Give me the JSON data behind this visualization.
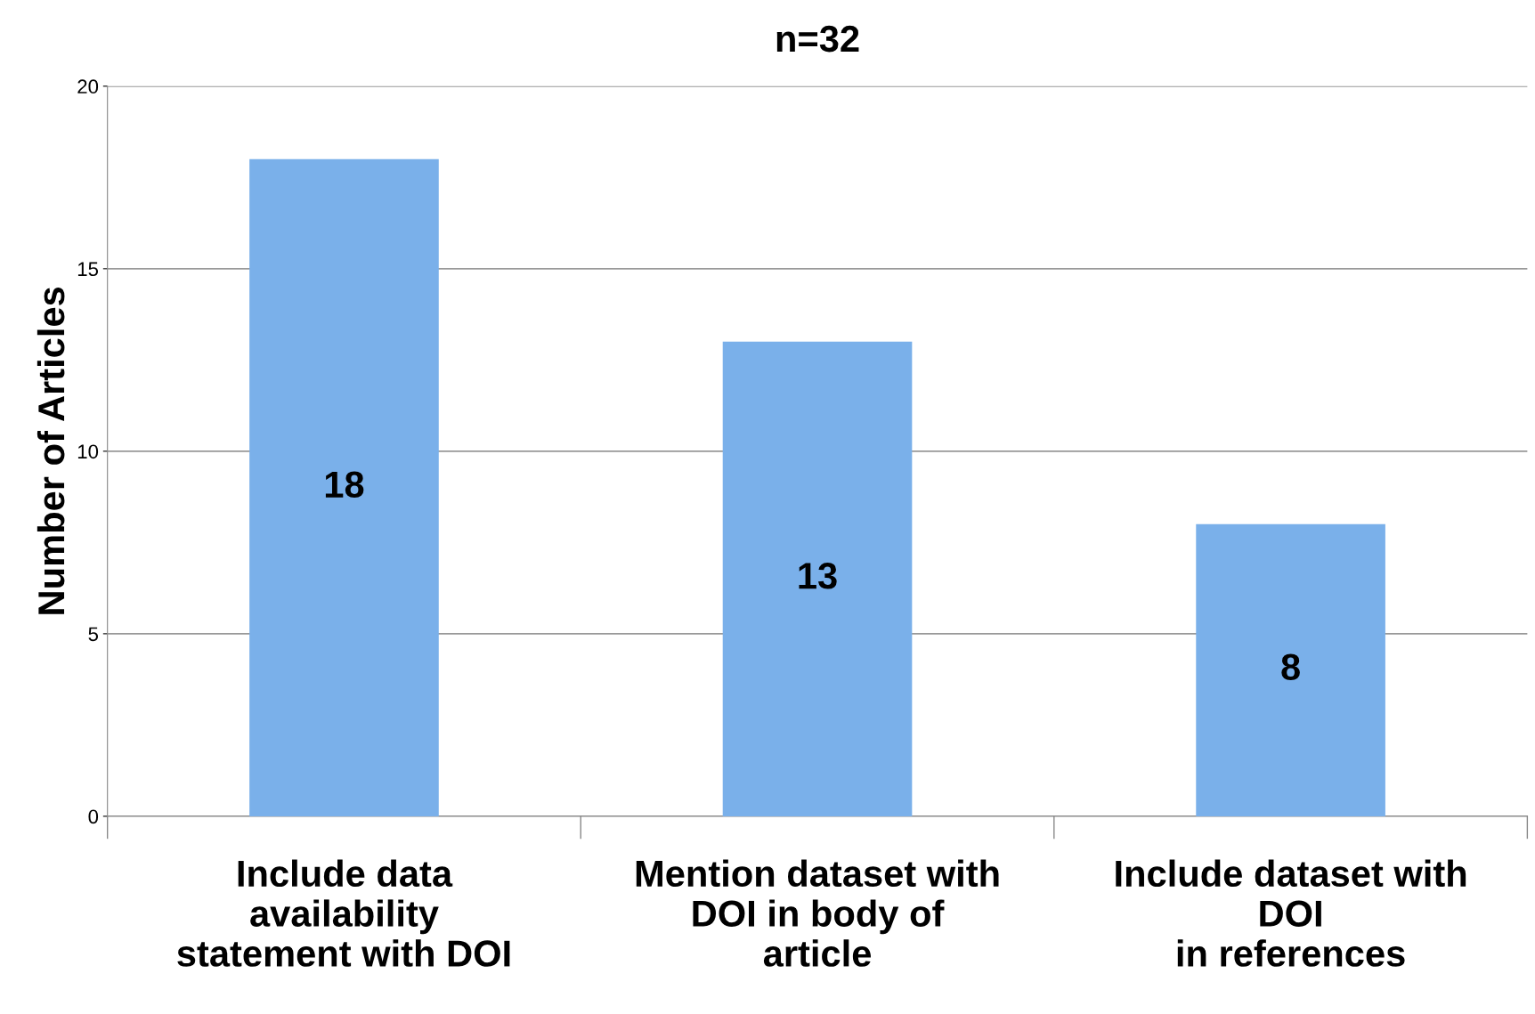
{
  "chart_data": {
    "type": "bar",
    "title": "n=32",
    "ylabel": "Number of Articles",
    "categories": [
      "Include data\navailability\nstatement with DOI",
      "Mention dataset with\nDOI in body of\narticle",
      "Include dataset with\nDOI\nin references"
    ],
    "values": [
      18,
      13,
      8
    ],
    "color": "#7ab0ea",
    "ylim": [
      0,
      20
    ],
    "yticks": [
      0,
      5,
      10,
      15,
      20
    ],
    "grid": "y",
    "data_labels": true
  }
}
